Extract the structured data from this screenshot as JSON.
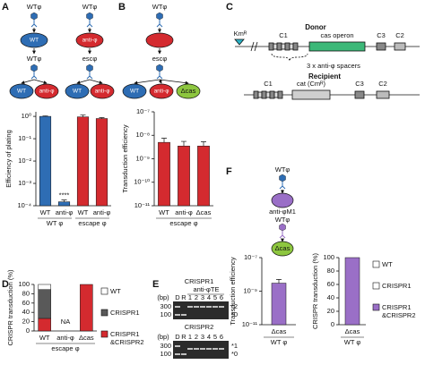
{
  "panel_labels": [
    "A",
    "B",
    "C",
    "D",
    "E",
    "F"
  ],
  "scheme_a": [
    {
      "phage": "WTφ",
      "host": "WT",
      "next_phage": "WTφ",
      "hosts": [
        "WT",
        "anti-φ"
      ]
    },
    {
      "phage": "WTφ",
      "host": "anti-φ",
      "next_phage": "escφ",
      "hosts": [
        "WT",
        "anti-φ"
      ]
    }
  ],
  "scheme_b": {
    "phage": "WTφ",
    "next_phage": "escφ",
    "hosts": [
      "WT",
      "anti-φ",
      "Δcas"
    ]
  },
  "scheme_c": {
    "donor": {
      "title": "Donor",
      "marker": "Kmᴿ",
      "c1": "C1",
      "operon": "cas operon",
      "c3": "C3",
      "c2": "C2",
      "note": "3 x anti-φ spacers"
    },
    "recipient": {
      "title": "Recipient",
      "c1": "C1",
      "gene": "cat (Cmᴿ)",
      "c3": "C3",
      "c2": "C2"
    }
  },
  "gels": {
    "lane_unit": "(bp)",
    "lanes": [
      "D",
      "R",
      "1",
      "2",
      "3",
      "4",
      "5",
      "6"
    ],
    "group": "anti-φTE",
    "sizes": [
      "300",
      "100"
    ],
    "panels": [
      {
        "title": "CRISPR1",
        "bands": [
          "*2",
          "*0"
        ]
      },
      {
        "title": "CRISPR2",
        "bands": [
          "*1",
          "*0"
        ]
      }
    ]
  },
  "scheme_f": {
    "phage": "WTφ",
    "host": "anti-φM1",
    "next_phage": "WTφ",
    "final_host": "Δcas"
  },
  "chart_data": [
    {
      "type": "bar",
      "ylabel": "Efficiency of plating",
      "log_scale": true,
      "categories": [
        "WT",
        "anti-φ",
        "WT",
        "anti-φ"
      ],
      "groups": [
        "WT φ",
        "escape φ"
      ],
      "values": [
        1,
        0.00015,
        0.95,
        0.8
      ],
      "errors": [
        0.05,
        3e-05,
        0.2,
        0.08
      ],
      "colors": [
        "#2e6db4",
        "#2e6db4",
        "#d42a2f",
        "#d42a2f"
      ],
      "annotations": [
        "****"
      ],
      "ylim": [
        0.0001,
        1.6
      ],
      "yticks": [
        {
          "value": 0.0001,
          "label": "10⁻⁴"
        },
        {
          "value": 0.001,
          "label": "10⁻³"
        },
        {
          "value": 0.01,
          "label": "10⁻²"
        },
        {
          "value": 0.1,
          "label": "10⁻¹"
        },
        {
          "value": 1,
          "label": "10⁰"
        }
      ]
    },
    {
      "type": "bar",
      "ylabel": "Transduction efficiency",
      "log_scale": true,
      "categories": [
        "WT",
        "anti-φ",
        "Δcas"
      ],
      "groups": [
        "escape φ"
      ],
      "values": [
        5e-09,
        3.5e-09,
        3.5e-09
      ],
      "errors": [
        2.5e-09,
        2e-09,
        1.8e-09
      ],
      "colors": [
        "#d42a2f",
        "#d42a2f",
        "#d42a2f"
      ],
      "ylim": [
        1e-11,
        1e-07
      ],
      "yticks": [
        {
          "value": 1e-11,
          "label": "10⁻¹¹"
        },
        {
          "value": 1e-10,
          "label": "10⁻¹⁰"
        },
        {
          "value": 1e-09,
          "label": "10⁻⁹"
        },
        {
          "value": 1e-08,
          "label": "10⁻⁸"
        },
        {
          "value": 1e-07,
          "label": "10⁻⁷"
        }
      ]
    },
    {
      "type": "stacked_bar",
      "ylabel": "CRISPR transduction (%)",
      "categories": [
        "WT",
        "anti-φ",
        "Δcas"
      ],
      "groups": [
        "escape φ"
      ],
      "series": [
        {
          "name": "WT",
          "color": "#ffffff",
          "values": [
            11,
            null,
            0
          ]
        },
        {
          "name": "CRISPR1",
          "color": "#595959",
          "values": [
            62,
            null,
            0
          ]
        },
        {
          "name": "CRISPR1 &CRISPR2",
          "color": "#d42a2f",
          "values": [
            27,
            null,
            100
          ]
        }
      ],
      "annotations": [
        "NA"
      ],
      "ylim": [
        0,
        100
      ],
      "yticks": [
        0,
        20,
        40,
        60,
        80,
        100
      ]
    },
    {
      "type": "bar",
      "ylabel": "Transduction efficiency",
      "log_scale": true,
      "categories": [
        "Δcas"
      ],
      "groups": [
        "WT φ"
      ],
      "values": [
        3e-09
      ],
      "errors": [
        2e-09
      ],
      "colors": [
        "#9a6fc7"
      ],
      "ylim": [
        1e-11,
        1e-07
      ],
      "yticks": [
        {
          "value": 1e-11,
          "label": "10⁻¹¹"
        },
        {
          "value": 1e-09,
          "label": "10⁻⁹"
        },
        {
          "value": 1e-07,
          "label": "10⁻⁷"
        }
      ]
    },
    {
      "type": "stacked_bar",
      "ylabel": "CRISPR transduction (%)",
      "categories": [
        "Δcas"
      ],
      "groups": [
        "WT φ"
      ],
      "series": [
        {
          "name": "WT",
          "color": "#ffffff",
          "values": [
            0
          ]
        },
        {
          "name": "CRISPR1",
          "color": "#ffffff",
          "values": [
            0
          ]
        },
        {
          "name": "CRISPR1 &CRISPR2",
          "color": "#9a6fc7",
          "values": [
            100
          ]
        }
      ],
      "ylim": [
        0,
        100
      ],
      "yticks": [
        0,
        20,
        40,
        60,
        80,
        100
      ]
    }
  ]
}
